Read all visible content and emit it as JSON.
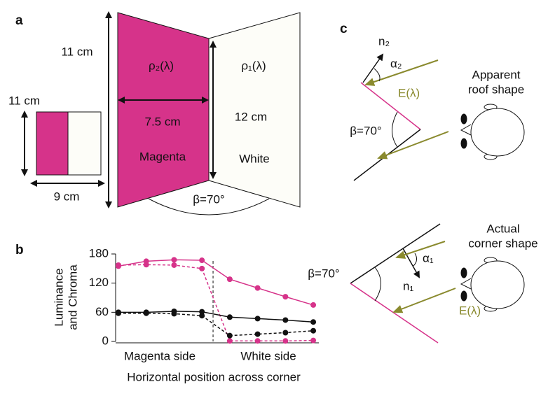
{
  "panel_a": {
    "label": "a",
    "small_height": "11 cm",
    "small_width": "9 cm",
    "big_height": "11 cm",
    "rho2": "ρ₂(λ)",
    "rho1": "ρ₁(λ)",
    "width": "7.5 cm",
    "height": "12 cm",
    "magenta": "Magenta",
    "white": "White",
    "angle": "β=70°"
  },
  "chart_data": {
    "type": "line",
    "label": "b",
    "ylabel": [
      "Luminance",
      "and Chroma"
    ],
    "xlabel": "Horizontal position across corner",
    "group_labels": [
      "Magenta side",
      "White side"
    ],
    "x": [
      0,
      1,
      2,
      3,
      4,
      5,
      6,
      7
    ],
    "xlim": [
      -0.1,
      7.2
    ],
    "divider_x": 3.4,
    "ylim": [
      0,
      180
    ],
    "yticks": [
      0,
      60,
      120,
      180
    ],
    "series": [
      {
        "color": "#d6338a",
        "dash": false,
        "values": [
          155,
          165,
          168,
          167,
          128,
          110,
          92,
          75
        ]
      },
      {
        "color": "#d6338a",
        "dash": true,
        "values": [
          157,
          158,
          157,
          150,
          1,
          1,
          1,
          2
        ]
      },
      {
        "color": "#111111",
        "dash": false,
        "values": [
          60,
          60,
          62,
          61,
          50,
          47,
          44,
          40
        ]
      },
      {
        "color": "#111111",
        "dash": true,
        "values": [
          58,
          58,
          57,
          53,
          12,
          15,
          18,
          22
        ]
      }
    ]
  },
  "panel_c": {
    "label": "c",
    "top": {
      "n": "n₂",
      "alpha": "α₂",
      "light": "E(λ)",
      "angle": "β=70°",
      "caption": [
        "Apparent",
        "roof shape"
      ]
    },
    "bottom": {
      "n": "n₁",
      "alpha": "α₁",
      "light": "E(λ)",
      "angle": "β=70°",
      "caption": [
        "Actual",
        "corner shape"
      ]
    }
  }
}
